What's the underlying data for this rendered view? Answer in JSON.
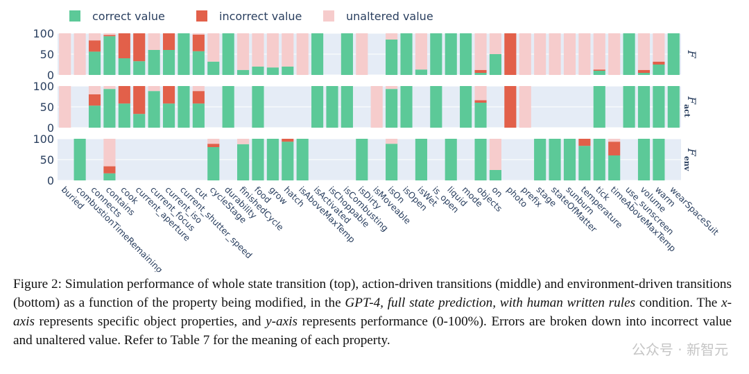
{
  "chart_data": {
    "type": "bar",
    "stacked": true,
    "legend": [
      {
        "name": "correct value",
        "color": "#5cc998"
      },
      {
        "name": "incorrect value",
        "color": "#e2604a"
      },
      {
        "name": "unaltered value",
        "color": "#f6cccc"
      }
    ],
    "legend_position": "top-left",
    "categories": [
      "buried",
      "combustionTimeRemaining",
      "connects",
      "contains",
      "cook",
      "current_aperture",
      "current_focus",
      "current_iso",
      "current_shutter_speed",
      "cut",
      "cycleStage",
      "durability",
      "finishedCycle",
      "food",
      "grow",
      "hatch",
      "isAboveMaxTemp",
      "isActivated",
      "isChoppable",
      "isCombusting",
      "isDirty",
      "isMoveable",
      "isOn",
      "isOpen",
      "isWet",
      "is_open",
      "liquid",
      "mode",
      "objects",
      "on",
      "photo",
      "prefix",
      "stage",
      "stateOfMatter",
      "sunburn",
      "temperature",
      "tick",
      "timeAboveMaxTemp",
      "use_sunscreen",
      "volume",
      "warm",
      "wearSpaceSuit"
    ],
    "ylim": [
      0,
      100
    ],
    "yticks": [
      0,
      50,
      100
    ],
    "panels": [
      {
        "label": "F",
        "correct": [
          0,
          0,
          56,
          93,
          40,
          33,
          60,
          60,
          100,
          57,
          32,
          100,
          12,
          20,
          18,
          20,
          0,
          100,
          0,
          100,
          0,
          0,
          85,
          100,
          13,
          100,
          100,
          100,
          5,
          50,
          0,
          0,
          0,
          0,
          0,
          0,
          10,
          0,
          100,
          5,
          25,
          100
        ],
        "incorrect": [
          0,
          0,
          27,
          3,
          60,
          67,
          0,
          40,
          0,
          40,
          0,
          0,
          0,
          0,
          0,
          0,
          0,
          0,
          0,
          0,
          0,
          0,
          0,
          0,
          0,
          0,
          0,
          0,
          7,
          0,
          100,
          0,
          0,
          0,
          0,
          0,
          3,
          0,
          0,
          7,
          7,
          0
        ],
        "unaltered": [
          100,
          100,
          17,
          4,
          0,
          0,
          40,
          0,
          0,
          3,
          68,
          0,
          88,
          80,
          82,
          80,
          100,
          0,
          0,
          0,
          100,
          0,
          15,
          0,
          87,
          0,
          0,
          0,
          88,
          50,
          0,
          100,
          100,
          100,
          100,
          100,
          87,
          100,
          0,
          88,
          68,
          0
        ]
      },
      {
        "label": "F_act",
        "correct": [
          0,
          0,
          53,
          93,
          58,
          33,
          88,
          58,
          100,
          58,
          0,
          100,
          0,
          100,
          0,
          0,
          0,
          100,
          100,
          100,
          0,
          0,
          93,
          100,
          0,
          100,
          0,
          100,
          60,
          0,
          0,
          0,
          0,
          0,
          0,
          0,
          100,
          0,
          100,
          100,
          100,
          100
        ],
        "incorrect": [
          0,
          0,
          27,
          0,
          42,
          67,
          0,
          42,
          0,
          30,
          0,
          0,
          0,
          0,
          0,
          0,
          0,
          0,
          0,
          0,
          0,
          0,
          0,
          0,
          0,
          0,
          0,
          0,
          6,
          0,
          100,
          0,
          0,
          0,
          0,
          0,
          0,
          0,
          0,
          0,
          0,
          0
        ],
        "unaltered": [
          100,
          0,
          20,
          7,
          0,
          0,
          12,
          0,
          0,
          12,
          0,
          0,
          0,
          0,
          0,
          0,
          0,
          0,
          0,
          0,
          0,
          100,
          7,
          0,
          0,
          0,
          0,
          0,
          34,
          0,
          0,
          100,
          0,
          0,
          0,
          0,
          0,
          0,
          0,
          0,
          0,
          0
        ]
      },
      {
        "label": "F_env",
        "correct": [
          0,
          100,
          0,
          17,
          0,
          0,
          0,
          0,
          0,
          0,
          80,
          0,
          87,
          100,
          100,
          93,
          100,
          0,
          0,
          0,
          100,
          0,
          88,
          0,
          100,
          0,
          100,
          0,
          100,
          25,
          0,
          0,
          100,
          100,
          100,
          83,
          100,
          60,
          0,
          100,
          100,
          0
        ],
        "incorrect": [
          0,
          0,
          0,
          17,
          0,
          0,
          0,
          0,
          0,
          0,
          8,
          0,
          0,
          0,
          0,
          7,
          0,
          0,
          0,
          0,
          0,
          0,
          0,
          0,
          0,
          0,
          0,
          0,
          0,
          0,
          0,
          0,
          0,
          0,
          0,
          17,
          0,
          33,
          0,
          0,
          0,
          0
        ],
        "unaltered": [
          0,
          0,
          0,
          66,
          0,
          0,
          0,
          0,
          0,
          0,
          12,
          0,
          13,
          0,
          0,
          0,
          0,
          0,
          0,
          0,
          0,
          0,
          12,
          0,
          0,
          0,
          0,
          0,
          0,
          75,
          0,
          0,
          0,
          0,
          0,
          0,
          0,
          7,
          0,
          0,
          0,
          0
        ]
      }
    ]
  },
  "caption": {
    "seg1": "Figure 2:  Simulation performance of whole state transition (top), action-driven transitions (middle) and environment-driven transitions (bottom) as a function of the property being modified, in the ",
    "seg2": "GPT-4, full state prediction, with human written rules",
    "seg3": " condition. The ",
    "seg4": "x-axis",
    "seg5": " represents specific object properties, and ",
    "seg6": "y-axis",
    "seg7": " represents performance (0-100%). Errors are broken down into incorrect value and unaltered value. Refer to Table 7 for the meaning of each property."
  },
  "watermark": "公众号 · 新智元"
}
